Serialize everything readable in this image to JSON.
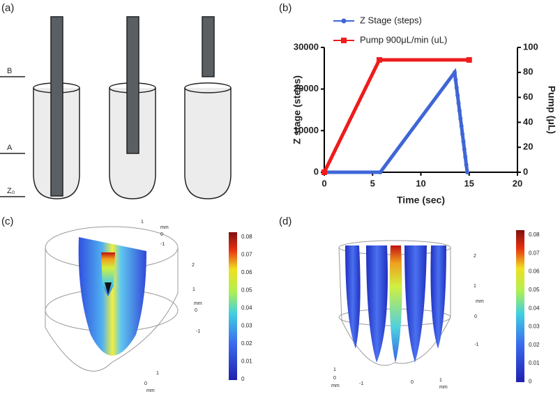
{
  "chart_data": {
    "type": "line",
    "x_label": "Time (sec)",
    "y_label": "Z stage (steps)",
    "y2_label": "Pump (μL)",
    "xlim": [
      0,
      20
    ],
    "xticks": [
      0,
      5,
      10,
      15,
      20
    ],
    "ylim": [
      0,
      30000
    ],
    "yticks": [
      0,
      10000,
      20000,
      30000
    ],
    "y2lim": [
      0,
      100
    ],
    "y2ticks": [
      0,
      20,
      40,
      60,
      80,
      100
    ],
    "legend": "top",
    "series": [
      {
        "name": "Z Stage (steps)",
        "color": "#3f66d6",
        "marker": "circle",
        "x": [
          0,
          5.8,
          13.5,
          13.6,
          13.7,
          13.8,
          13.9,
          14.0,
          14.1,
          14.2,
          14.3,
          14.4,
          14.5,
          14.6,
          14.7,
          14.8
        ],
        "values": [
          0,
          0,
          24000,
          22200,
          20300,
          18500,
          16600,
          14800,
          12900,
          11100,
          9200,
          7400,
          5500,
          3700,
          1800,
          0
        ]
      },
      {
        "name": "Pump 900μL/min (uL)",
        "color": "#ee1c1c",
        "marker": "square",
        "axis": "y2",
        "x": [
          0,
          5.7,
          15
        ],
        "values": [
          0,
          90,
          90
        ]
      }
    ]
  },
  "figure": {
    "panel_labels": [
      "(a)",
      "(b)",
      "(c)",
      "(d)"
    ],
    "diagram_labels": [
      "B",
      "A",
      "Z₀"
    ],
    "colorbar_c": [
      "0.08",
      "0.07",
      "0.06",
      "0.05",
      "0.04",
      "0.03",
      "0.02",
      "0.01",
      "0"
    ],
    "colorbar_d": [
      "0.08",
      "0.07",
      "0.06",
      "0.05",
      "0.04",
      "0.03",
      "0.02",
      "0.01",
      "0"
    ],
    "axes_c": [
      "1",
      "mm",
      "0",
      "-1",
      "2",
      "1",
      "mm",
      "0",
      "-1",
      "1",
      "0",
      "mm"
    ],
    "axes_d": [
      "2",
      "1",
      "mm",
      "0",
      "-1",
      "1",
      "0",
      "mm",
      "-1",
      "0",
      "1",
      "mm"
    ]
  }
}
